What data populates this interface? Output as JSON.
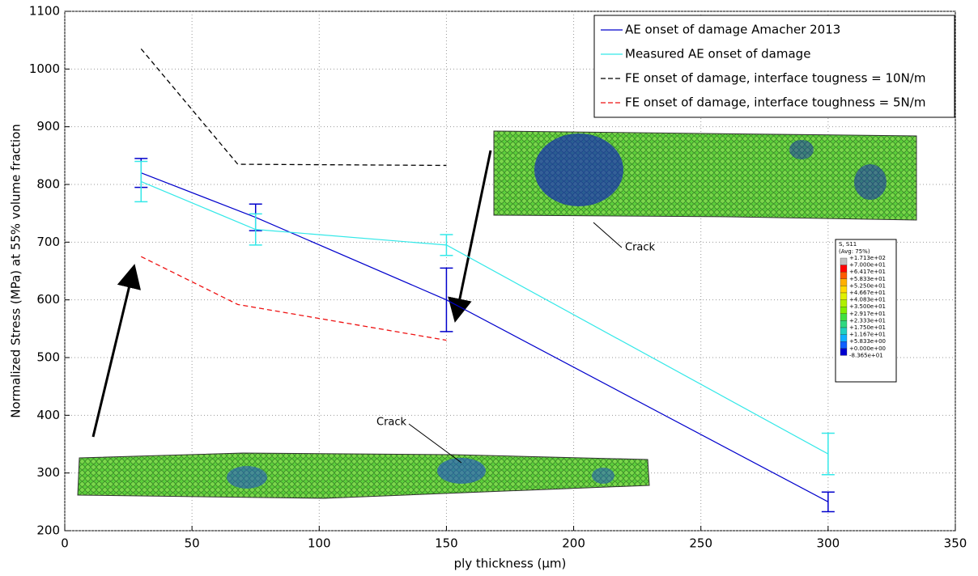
{
  "chart_data": {
    "type": "line",
    "x_label": "ply thickness (µm)",
    "y_label": "Normalized Stress (MPa) at 55% volume fraction",
    "xlim": [
      0,
      350
    ],
    "xticks": [
      0,
      50,
      100,
      150,
      200,
      250,
      300,
      350
    ],
    "ylim": [
      200,
      1100
    ],
    "yticks": [
      200,
      300,
      400,
      500,
      600,
      700,
      800,
      900,
      1000,
      1100
    ],
    "grid": true,
    "legend": "upper right",
    "series": [
      {
        "name": "AE onset of damage Amacher 2013",
        "color": "#0000cc",
        "dash": false,
        "x": [
          30,
          75,
          150,
          300
        ],
        "values": [
          820,
          743,
          600,
          250
        ],
        "errors": [
          25,
          23,
          55,
          17
        ]
      },
      {
        "name": "Measured AE onset of damage",
        "color": "#33e8e8",
        "dash": false,
        "x": [
          30,
          75,
          150,
          300
        ],
        "values": [
          805,
          722,
          695,
          333
        ],
        "errors": [
          35,
          27,
          18,
          36
        ]
      },
      {
        "name": "FE onset of damage, interface tougness = 10N/m",
        "color": "#000000",
        "dash": true,
        "x": [
          30,
          68,
          150
        ],
        "values": [
          1035,
          835,
          833
        ]
      },
      {
        "name": "FE onset of damage, interface toughness = 5N/m",
        "color": "#ee1111",
        "dash": true,
        "x": [
          30,
          68,
          150
        ],
        "values": [
          675,
          592,
          530
        ]
      }
    ],
    "annotations": [
      "Crack",
      "Crack"
    ],
    "colorbar": {
      "title": "S, S11",
      "subtitle": "(Avg: 75%)",
      "labels": [
        "+1.713e+02",
        "+7.000e+01",
        "+6.417e+01",
        "+5.833e+01",
        "+5.250e+01",
        "+4.667e+01",
        "+4.083e+01",
        "+3.500e+01",
        "+2.917e+01",
        "+2.333e+01",
        "+1.750e+01",
        "+1.167e+01",
        "+5.833e+00",
        "+0.000e+00",
        "-8.365e+01"
      ],
      "colors": [
        "#c0c0c0",
        "#ff0000",
        "#ff5a00",
        "#ffb000",
        "#ffd800",
        "#e0f000",
        "#b0f000",
        "#80ee00",
        "#40e040",
        "#30d880",
        "#20d0c0",
        "#10b0ff",
        "#1060ff",
        "#0000d0"
      ]
    }
  }
}
